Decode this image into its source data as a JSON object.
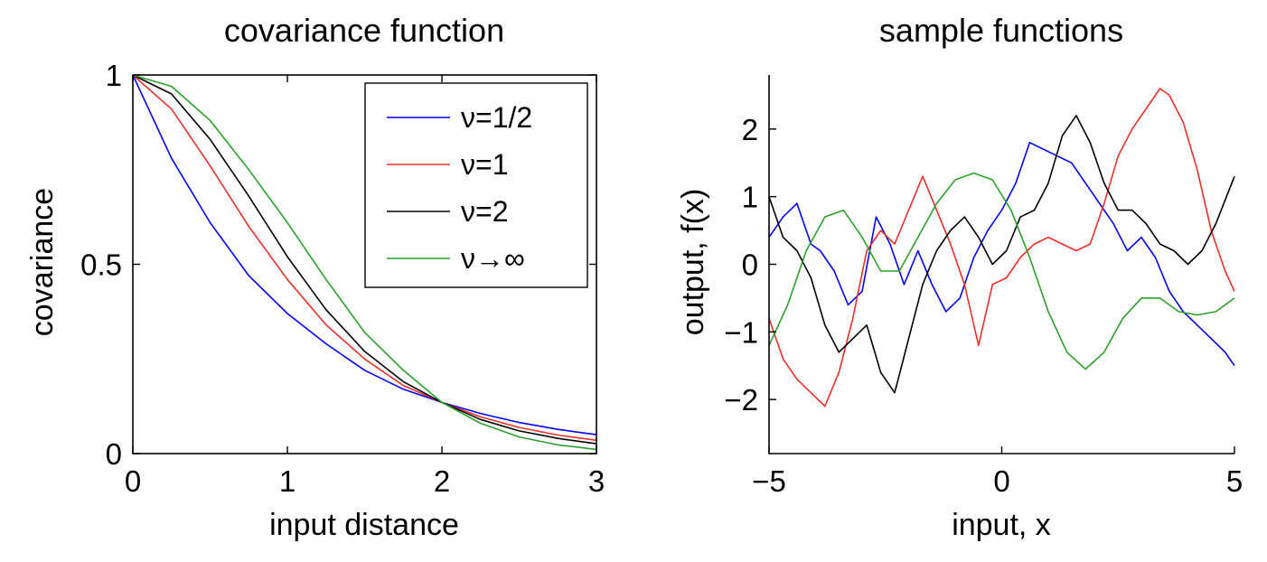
{
  "chart_data": [
    {
      "type": "line",
      "title": "covariance function",
      "xlabel": "input distance",
      "ylabel": "covariance",
      "xlim": [
        0,
        3
      ],
      "ylim": [
        0,
        1
      ],
      "xticks": [
        "0",
        "1",
        "2",
        "3"
      ],
      "yticks": [
        "0",
        "0.5",
        "1"
      ],
      "legend": "top-right",
      "series": [
        {
          "name": "ν=1/2",
          "color": "#0000ff",
          "x": [
            0,
            0.25,
            0.5,
            0.75,
            1,
            1.25,
            1.5,
            1.75,
            2,
            2.25,
            2.5,
            2.75,
            3
          ],
          "y": [
            1,
            0.78,
            0.61,
            0.47,
            0.37,
            0.29,
            0.22,
            0.17,
            0.135,
            0.106,
            0.082,
            0.064,
            0.05
          ]
        },
        {
          "name": "ν=1",
          "color": "#e8302a",
          "x": [
            0,
            0.25,
            0.5,
            0.75,
            1,
            1.25,
            1.5,
            1.75,
            2,
            2.25,
            2.5,
            2.75,
            3
          ],
          "y": [
            1,
            0.91,
            0.76,
            0.6,
            0.46,
            0.34,
            0.25,
            0.18,
            0.135,
            0.097,
            0.069,
            0.049,
            0.035
          ]
        },
        {
          "name": "ν=2",
          "color": "#000000",
          "x": [
            0,
            0.25,
            0.5,
            0.75,
            1,
            1.25,
            1.5,
            1.75,
            2,
            2.25,
            2.5,
            2.75,
            3
          ],
          "y": [
            1,
            0.95,
            0.83,
            0.68,
            0.52,
            0.38,
            0.27,
            0.19,
            0.135,
            0.09,
            0.06,
            0.04,
            0.026
          ]
        },
        {
          "name": "ν→∞",
          "color": "#2ca02c",
          "x": [
            0,
            0.25,
            0.5,
            0.75,
            1,
            1.25,
            1.5,
            1.75,
            2,
            2.25,
            2.5,
            2.75,
            3
          ],
          "y": [
            1,
            0.97,
            0.88,
            0.75,
            0.61,
            0.46,
            0.32,
            0.22,
            0.135,
            0.08,
            0.044,
            0.023,
            0.011
          ]
        }
      ]
    },
    {
      "type": "line",
      "title": "sample functions",
      "xlabel": "input, x",
      "ylabel": "output, f(x)",
      "xlim": [
        -5,
        5
      ],
      "ylim": [
        -2.8,
        2.8
      ],
      "xticks": [
        "−5",
        "0",
        "5"
      ],
      "yticks": [
        "−2",
        "−1",
        "0",
        "1",
        "2"
      ],
      "series": [
        {
          "color": "#0000ff",
          "x": [
            -5,
            -4.7,
            -4.4,
            -4.1,
            -3.9,
            -3.6,
            -3.3,
            -3.0,
            -2.7,
            -2.4,
            -2.1,
            -1.8,
            -1.5,
            -1.2,
            -0.9,
            -0.6,
            -0.3,
            0,
            0.3,
            0.6,
            0.9,
            1.2,
            1.5,
            1.8,
            2.1,
            2.4,
            2.7,
            3.0,
            3.3,
            3.6,
            3.9,
            4.2,
            4.5,
            4.8,
            5
          ],
          "y": [
            0.4,
            0.7,
            0.9,
            0.3,
            0.2,
            -0.1,
            -0.6,
            -0.4,
            0.7,
            0.3,
            -0.3,
            0.2,
            -0.3,
            -0.7,
            -0.5,
            0.1,
            0.5,
            0.8,
            1.2,
            1.8,
            1.7,
            1.6,
            1.5,
            1.2,
            0.9,
            0.6,
            0.2,
            0.4,
            0.1,
            -0.4,
            -0.7,
            -0.9,
            -1.1,
            -1.3,
            -1.5
          ]
        },
        {
          "color": "#e8302a",
          "x": [
            -5,
            -4.7,
            -4.4,
            -4.1,
            -3.8,
            -3.5,
            -3.2,
            -2.9,
            -2.6,
            -2.3,
            -2.0,
            -1.7,
            -1.4,
            -1.1,
            -0.8,
            -0.5,
            -0.2,
            0.1,
            0.4,
            0.7,
            1.0,
            1.3,
            1.6,
            1.9,
            2.2,
            2.5,
            2.8,
            3.1,
            3.4,
            3.6,
            3.9,
            4.2,
            4.5,
            4.8,
            5
          ],
          "y": [
            -0.8,
            -1.4,
            -1.7,
            -1.9,
            -2.1,
            -1.6,
            -0.8,
            0.2,
            0.5,
            0.3,
            0.8,
            1.3,
            0.8,
            0.3,
            -0.3,
            -1.2,
            -0.3,
            -0.2,
            0.1,
            0.3,
            0.4,
            0.3,
            0.2,
            0.3,
            0.9,
            1.6,
            2.0,
            2.3,
            2.6,
            2.5,
            2.1,
            1.4,
            0.5,
            -0.1,
            -0.4
          ]
        },
        {
          "color": "#000000",
          "x": [
            -5,
            -4.7,
            -4.4,
            -4.1,
            -3.8,
            -3.5,
            -3.2,
            -2.9,
            -2.6,
            -2.3,
            -2.0,
            -1.7,
            -1.4,
            -1.1,
            -0.8,
            -0.5,
            -0.2,
            0.1,
            0.4,
            0.7,
            1.0,
            1.3,
            1.6,
            1.9,
            2.2,
            2.5,
            2.8,
            3.1,
            3.4,
            3.7,
            4.0,
            4.3,
            4.6,
            5
          ],
          "y": [
            1.0,
            0.4,
            0.2,
            -0.2,
            -0.9,
            -1.3,
            -1.1,
            -0.9,
            -1.6,
            -1.9,
            -1.1,
            -0.3,
            0.2,
            0.5,
            0.7,
            0.4,
            0.0,
            0.2,
            0.7,
            0.8,
            1.2,
            1.9,
            2.2,
            1.8,
            1.2,
            0.8,
            0.8,
            0.6,
            0.3,
            0.2,
            0.0,
            0.2,
            0.6,
            1.3
          ]
        },
        {
          "color": "#2ca02c",
          "x": [
            -5,
            -4.6,
            -4.2,
            -3.8,
            -3.4,
            -3.0,
            -2.6,
            -2.2,
            -1.8,
            -1.4,
            -1.0,
            -0.6,
            -0.2,
            0.2,
            0.6,
            1.0,
            1.4,
            1.8,
            2.2,
            2.6,
            3.0,
            3.4,
            3.8,
            4.2,
            4.6,
            5
          ],
          "y": [
            -1.2,
            -0.6,
            0.2,
            0.7,
            0.8,
            0.4,
            -0.1,
            -0.1,
            0.4,
            0.9,
            1.25,
            1.35,
            1.25,
            0.8,
            0.1,
            -0.7,
            -1.3,
            -1.55,
            -1.3,
            -0.8,
            -0.5,
            -0.5,
            -0.7,
            -0.75,
            -0.7,
            -0.5
          ]
        }
      ]
    }
  ]
}
